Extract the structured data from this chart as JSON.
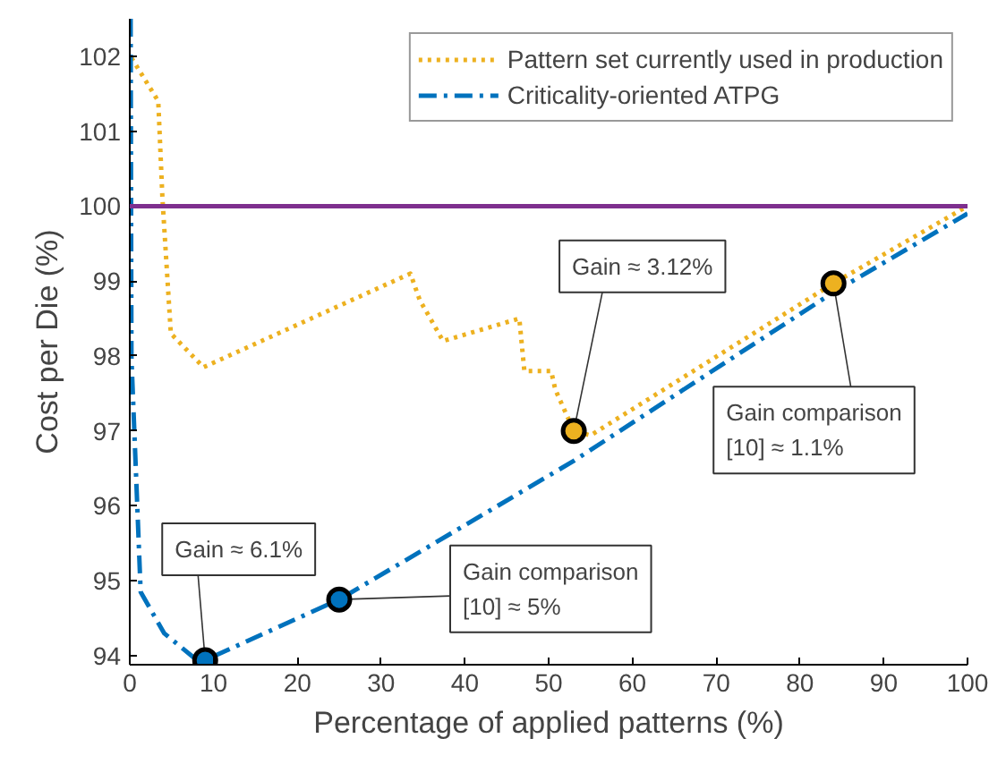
{
  "chart_data": {
    "type": "line",
    "xlabel": "Percentage of applied patterns (%)",
    "ylabel": "Cost per Die (%)",
    "xlim": [
      0,
      100
    ],
    "ylim": [
      93.88,
      102.5
    ],
    "xticks": [
      0,
      10,
      20,
      30,
      40,
      50,
      60,
      70,
      80,
      90,
      100
    ],
    "yticks": [
      94,
      95,
      96,
      97,
      98,
      99,
      100,
      101,
      102
    ],
    "grid": false,
    "legend": "top right",
    "series": [
      {
        "name": "Pattern set currently used in production",
        "color": "#edb120",
        "line_style": "dotted",
        "marker": "none",
        "x": [
          0.2,
          3.4,
          3.9,
          4.9,
          8.8,
          33.5,
          34.6,
          37.4,
          46.5,
          47.1,
          50.3,
          50.8,
          53,
          55,
          84,
          100
        ],
        "values": [
          101.98,
          101.4,
          100.1,
          98.3,
          97.85,
          99.1,
          98.75,
          98.2,
          98.5,
          97.8,
          97.8,
          97.55,
          97.0,
          96.94,
          98.97,
          100.0
        ]
      },
      {
        "name": "Criticality-oriented ATPG",
        "color": "#0072bd",
        "line_style": "dashdot",
        "marker": "none",
        "x": [
          0.1,
          0.2,
          1.3,
          4.1,
          7.7,
          9,
          25,
          53,
          84,
          100
        ],
        "values": [
          102.5,
          97.97,
          94.85,
          94.3,
          93.97,
          93.94,
          94.75,
          96.6,
          98.85,
          99.9
        ]
      },
      {
        "type": "scatter",
        "color": "#edb120",
        "marker": "circle",
        "x": [
          53,
          84
        ],
        "values": [
          97.0,
          98.97
        ]
      },
      {
        "type": "scatter",
        "color": "#0072bd",
        "marker": "circle",
        "x": [
          9,
          25
        ],
        "values": [
          93.94,
          94.75
        ]
      }
    ],
    "ref_lines": [
      {
        "axis": "y",
        "value": 100,
        "color": "#7e2f8e"
      }
    ],
    "annotations": [
      {
        "text": "Gain ≈ 3.12%",
        "x": 53,
        "y": 97.0
      },
      {
        "text": "Gain comparison\n[10] ≈ 1.1%",
        "x": 84,
        "y": 98.97
      },
      {
        "text": "Gain ≈ 6.1%",
        "x": 9,
        "y": 93.94
      },
      {
        "text": "Gain comparison\n[10] ≈ 5%",
        "x": 25,
        "y": 94.75
      }
    ]
  }
}
